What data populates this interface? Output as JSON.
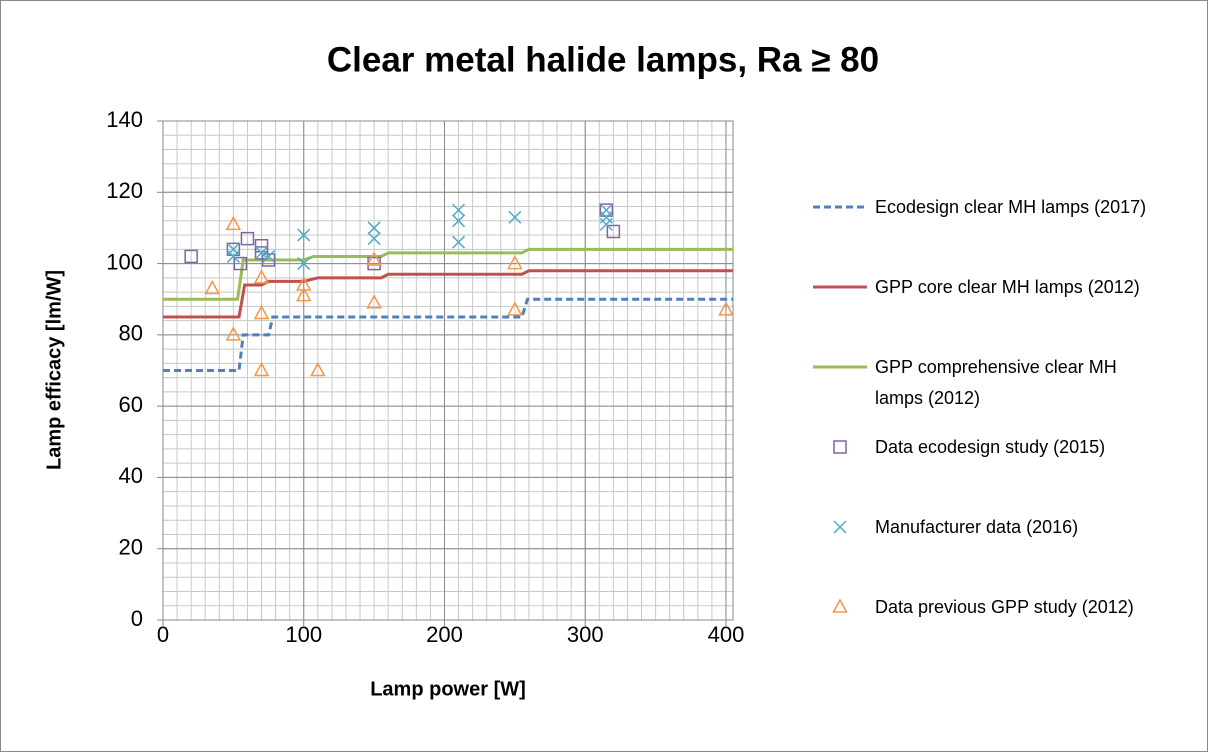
{
  "chart_data": {
    "type": "scatter",
    "title": "Clear metal halide lamps, Ra ≥  80",
    "x_label": "Lamp power [W]",
    "y_label": "Lamp efficacy [lm/W]",
    "xlim": [
      0,
      405
    ],
    "ylim": [
      0,
      140
    ],
    "xticks": [
      0,
      100,
      200,
      300,
      400
    ],
    "yticks": [
      0,
      20,
      40,
      60,
      80,
      100,
      120,
      140
    ],
    "grid": {
      "major": true,
      "minor_x": 10,
      "minor_y": 4
    },
    "legend": "right",
    "series": [
      {
        "name": "Ecodesign clear MH lamps (2017)",
        "type": "line",
        "dash": true,
        "color": "#4f81bd",
        "x": [
          0,
          54,
          57,
          75,
          78,
          255,
          259,
          405
        ],
        "values": [
          70,
          70,
          80,
          80,
          85,
          85,
          90,
          90
        ]
      },
      {
        "name": "GPP core clear MH lamps (2012)",
        "type": "line",
        "color": "#c0504d",
        "x": [
          0,
          54,
          58,
          70,
          75,
          100,
          110,
          155,
          160,
          255,
          260,
          405
        ],
        "values": [
          85,
          85,
          94,
          94,
          95,
          95,
          96,
          96,
          97,
          97,
          98,
          98
        ]
      },
      {
        "name": "GPP comprehensive clear MH lamps (2012)",
        "type": "line",
        "color": "#9bbb59",
        "x": [
          0,
          53,
          57,
          100,
          107,
          155,
          160,
          255,
          260,
          405
        ],
        "values": [
          90,
          90,
          101,
          101,
          102,
          102,
          103,
          103,
          104,
          104
        ]
      },
      {
        "name": "Data ecodesign study (2015)",
        "type": "scatter",
        "marker": "square",
        "color": "#8064a2",
        "x": [
          20,
          50,
          55,
          60,
          70,
          70,
          75,
          150,
          315,
          320
        ],
        "values": [
          102,
          104,
          100,
          107,
          105,
          103,
          101,
          100,
          115,
          109
        ]
      },
      {
        "name": "Manufacturer data (2016)",
        "type": "scatter",
        "marker": "x",
        "color": "#4bacc6",
        "x": [
          50,
          50,
          70,
          75,
          100,
          100,
          150,
          150,
          210,
          210,
          210,
          250,
          315,
          315,
          315
        ],
        "values": [
          104,
          102,
          103,
          102,
          108,
          100,
          110,
          107,
          115,
          112,
          106,
          113,
          115,
          113,
          111
        ]
      },
      {
        "name": "Data previous GPP study (2012)",
        "type": "scatter",
        "marker": "triangle",
        "color": "#f79646",
        "x": [
          35,
          50,
          50,
          70,
          70,
          70,
          100,
          100,
          110,
          150,
          150,
          250,
          250,
          400
        ],
        "values": [
          93,
          111,
          80,
          96,
          86,
          70,
          94,
          91,
          70,
          101,
          89,
          100,
          87,
          87
        ]
      }
    ]
  }
}
